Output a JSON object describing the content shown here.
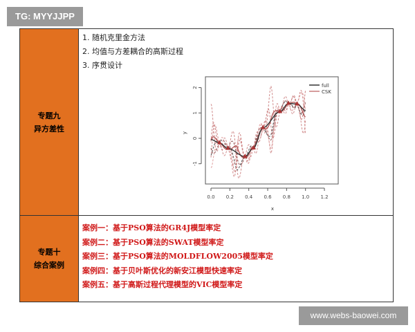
{
  "watermark_top": "TG: MYYJJPP",
  "watermark_bottom": "www.webs-baowei.com",
  "rows": [
    {
      "topic": "专题九",
      "subtitle": "异方差性",
      "items": [
        "1. 随机克里金方法",
        "2. 均值与方差耦合的高斯过程",
        "3. 序贯设计"
      ]
    },
    {
      "topic": "专题十",
      "subtitle": "综合案例",
      "items": [
        "案例一：基于PSO算法的GR4J模型率定",
        "案例二：基于PSO算法的SWAT模型率定",
        "案例三：基于PSO算法的MOLDFLOW2005模型率定",
        "案例四：基于贝叶斯优化的新安江模型快速率定",
        "案例五：基于高斯过程代理模型的VIC模型率定"
      ]
    }
  ],
  "colors": {
    "header_cell": "#e2701f",
    "case_text": "#d01818",
    "full": "#333333",
    "csk": "#c97b7b"
  },
  "chart_data": {
    "type": "line",
    "xlabel": "x",
    "ylabel": "y",
    "xlim": [
      0,
      1.2
    ],
    "ylim": [
      -1.5,
      2.3
    ],
    "xticks": [
      "0.0",
      "0.2",
      "0.4",
      "0.6",
      "0.8",
      "1.0",
      "1.2"
    ],
    "yticks": [
      "-1",
      "0",
      "1",
      "2"
    ],
    "legend": {
      "position": "top-right",
      "entries": [
        "full",
        "CSK"
      ]
    },
    "points": {
      "x": [
        0.09,
        0.18,
        0.36,
        0.45,
        0.55,
        0.73,
        0.82,
        0.91
      ],
      "y": [
        -0.18,
        -0.4,
        -0.72,
        -0.38,
        0.42,
        1.05,
        1.38,
        1.35
      ]
    }
  }
}
